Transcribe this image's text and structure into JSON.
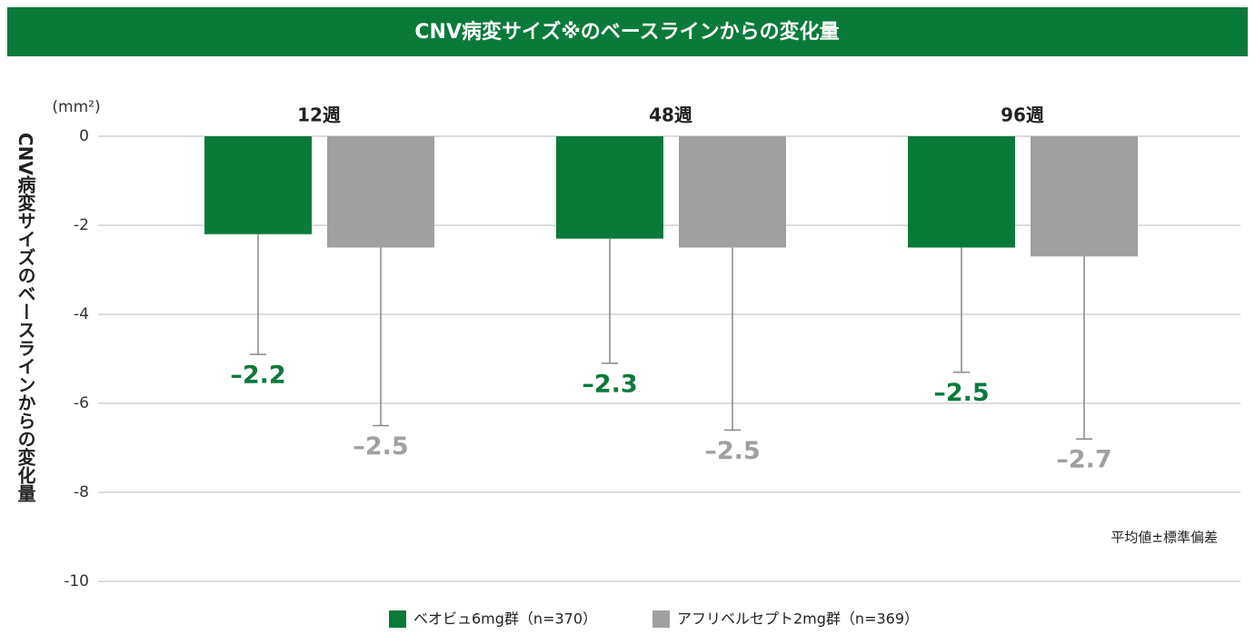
{
  "chart_data": {
    "type": "bar",
    "title": "CNV病変サイズ※のベースラインからの変化量",
    "y_label": "CNV病変サイズのベースラインからの変化量",
    "unit": "(mm²)",
    "note": "平均値±標準偏差",
    "categories": [
      "12週",
      "48週",
      "96週"
    ],
    "series": [
      {
        "name": "ベオビュ6mg群（n=370）",
        "color": "#0a7a3a",
        "values": [
          -2.2,
          -2.3,
          -2.5
        ],
        "errors": [
          2.7,
          2.8,
          2.8
        ],
        "value_labels": [
          "–2.2",
          "–2.3",
          "–2.5"
        ]
      },
      {
        "name": "アフリベルセプト2mg群（n=369）",
        "color": "#a0a0a0",
        "values": [
          -2.5,
          -2.5,
          -2.7
        ],
        "errors": [
          4.0,
          4.1,
          4.1
        ],
        "value_labels": [
          "–2.5",
          "–2.5",
          "–2.7"
        ]
      }
    ],
    "ylim": [
      -10,
      0
    ],
    "yticks": [
      0,
      -2,
      -4,
      -6,
      -8,
      -10
    ],
    "grid": true
  }
}
